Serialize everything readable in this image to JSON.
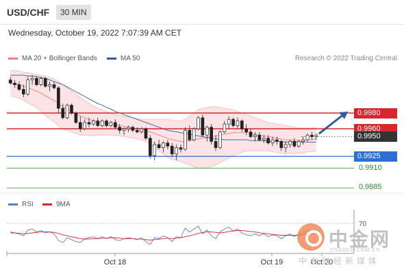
{
  "header": {
    "pair": "USD/CHF",
    "timeframe": "30 MIN"
  },
  "datetime": "Wednesday, October 19, 2022 7:07:39 AM CET",
  "legend": {
    "bollinger": {
      "label": "MA 20 + Bollinger Bands",
      "color": "#f08080"
    },
    "ma50": {
      "label": "MA 50",
      "color": "#2e5c9e"
    }
  },
  "credit": "Research © 2022 Trading Central",
  "rsi_legend": {
    "rsi": {
      "label": "RSI",
      "color": "#5b7bd5"
    },
    "ma9": {
      "label": "9MA",
      "color": "#d9262c"
    }
  },
  "watermark": {
    "cn": "中金网",
    "url": "CNGOLD.COM.CN",
    "sub": "中金财经新媒体"
  },
  "chart_data": {
    "type": "candlestick",
    "pair": "USD/CHF",
    "timeframe": "30 MIN",
    "x_tick_labels": [
      "Oct 18",
      "Oct 19",
      "Oct 20"
    ],
    "y_range": [
      0.988,
      1.004
    ],
    "levels": [
      {
        "value": 0.998,
        "label": "0.9980",
        "kind": "resistance",
        "color": "#d9262c"
      },
      {
        "value": 0.996,
        "label": "0.9960",
        "kind": "resistance",
        "color": "#d9262c"
      },
      {
        "value": 0.995,
        "label": "0.9950",
        "kind": "current",
        "color": "#333333"
      },
      {
        "value": 0.9925,
        "label": "0.9925",
        "kind": "pivot",
        "color": "#2e6fd6"
      },
      {
        "value": 0.991,
        "label": "0.9910",
        "kind": "support",
        "color": "#2e8b2e"
      },
      {
        "value": 0.9885,
        "label": "0.9885",
        "kind": "support",
        "color": "#2e8b2e"
      }
    ],
    "forecast": "up",
    "candles": [
      [
        1.0022,
        1.0026,
        1.0016,
        1.0018
      ],
      [
        1.0018,
        1.0022,
        1.0012,
        1.0016
      ],
      [
        1.0016,
        1.002,
        1.0008,
        1.001
      ],
      [
        1.001,
        1.0016,
        1.0,
        1.0004
      ],
      [
        1.0004,
        1.0026,
        1.0002,
        1.0022
      ],
      [
        1.0022,
        1.0028,
        1.0016,
        1.0024
      ],
      [
        1.0024,
        1.0027,
        1.0014,
        1.0016
      ],
      [
        1.0016,
        1.0026,
        1.0014,
        1.0024
      ],
      [
        1.0024,
        1.0026,
        1.0012,
        1.0014
      ],
      [
        1.0014,
        1.002,
        1.0008,
        1.0016
      ],
      [
        1.0016,
        1.002,
        1.001,
        1.0012
      ],
      [
        1.0012,
        1.0014,
        0.998,
        0.9986
      ],
      [
        0.9986,
        0.9992,
        0.9972,
        0.9974
      ],
      [
        0.9974,
        0.9992,
        0.9972,
        0.999
      ],
      [
        0.999,
        0.9992,
        0.9978,
        0.998
      ],
      [
        0.998,
        0.9982,
        0.9966,
        0.9968
      ],
      [
        0.9968,
        0.9976,
        0.9956,
        0.996
      ],
      [
        0.996,
        0.9972,
        0.9958,
        0.9968
      ],
      [
        0.9968,
        0.9974,
        0.9962,
        0.9966
      ],
      [
        0.9966,
        0.9972,
        0.9964,
        0.997
      ],
      [
        0.997,
        0.9974,
        0.9962,
        0.9964
      ],
      [
        0.9964,
        0.9972,
        0.9962,
        0.997
      ],
      [
        0.997,
        0.9972,
        0.9962,
        0.9964
      ],
      [
        0.9964,
        0.997,
        0.9962,
        0.9968
      ],
      [
        0.9968,
        0.9972,
        0.996,
        0.9962
      ],
      [
        0.9962,
        0.9966,
        0.9954,
        0.9958
      ],
      [
        0.9958,
        0.9962,
        0.9952,
        0.996
      ],
      [
        0.996,
        0.9964,
        0.9956,
        0.9962
      ],
      [
        0.9962,
        0.9964,
        0.9956,
        0.9958
      ],
      [
        0.9958,
        0.9962,
        0.9954,
        0.9956
      ],
      [
        0.9956,
        0.9962,
        0.9954,
        0.996
      ],
      [
        0.996,
        0.9962,
        0.9946,
        0.9948
      ],
      [
        0.9948,
        0.9952,
        0.9922,
        0.9926
      ],
      [
        0.9926,
        0.9944,
        0.992,
        0.994
      ],
      [
        0.994,
        0.9946,
        0.9934,
        0.9936
      ],
      [
        0.9936,
        0.9944,
        0.993,
        0.9942
      ],
      [
        0.9942,
        0.9946,
        0.9934,
        0.9938
      ],
      [
        0.9938,
        0.9942,
        0.9924,
        0.9928
      ],
      [
        0.9928,
        0.994,
        0.992,
        0.9936
      ],
      [
        0.9936,
        0.994,
        0.993,
        0.9934
      ],
      [
        0.9934,
        0.9962,
        0.9932,
        0.9958
      ],
      [
        0.9958,
        0.9964,
        0.9944,
        0.9946
      ],
      [
        0.9946,
        0.9962,
        0.9944,
        0.996
      ],
      [
        0.996,
        0.9976,
        0.9958,
        0.9974
      ],
      [
        0.9974,
        0.9978,
        0.995,
        0.9952
      ],
      [
        0.9952,
        0.9964,
        0.9944,
        0.9962
      ],
      [
        0.9962,
        0.9966,
        0.994,
        0.9944
      ],
      [
        0.9944,
        0.9952,
        0.9932,
        0.9936
      ],
      [
        0.9936,
        0.9958,
        0.9934,
        0.9956
      ],
      [
        0.9956,
        0.997,
        0.9954,
        0.9966
      ],
      [
        0.9966,
        0.9976,
        0.996,
        0.9972
      ],
      [
        0.9972,
        0.9974,
        0.9962,
        0.9964
      ],
      [
        0.9964,
        0.9974,
        0.996,
        0.997
      ],
      [
        0.997,
        0.9972,
        0.9956,
        0.996
      ],
      [
        0.996,
        0.9966,
        0.9952,
        0.9956
      ],
      [
        0.9956,
        0.996,
        0.9948,
        0.995
      ],
      [
        0.995,
        0.9956,
        0.9944,
        0.9952
      ],
      [
        0.9952,
        0.9956,
        0.9944,
        0.9946
      ],
      [
        0.9946,
        0.9952,
        0.9942,
        0.9948
      ],
      [
        0.9948,
        0.9952,
        0.994,
        0.9942
      ],
      [
        0.9942,
        0.995,
        0.9938,
        0.9946
      ],
      [
        0.9946,
        0.995,
        0.994,
        0.9944
      ],
      [
        0.9944,
        0.9946,
        0.9932,
        0.9936
      ],
      [
        0.9936,
        0.9944,
        0.993,
        0.994
      ],
      [
        0.994,
        0.9946,
        0.9936,
        0.9944
      ],
      [
        0.9944,
        0.9948,
        0.9936,
        0.9938
      ],
      [
        0.9938,
        0.9946,
        0.9936,
        0.9944
      ],
      [
        0.9944,
        0.995,
        0.994,
        0.9946
      ],
      [
        0.9946,
        0.9954,
        0.9944,
        0.9952
      ],
      [
        0.9952,
        0.9956,
        0.9946,
        0.995
      ],
      [
        0.995,
        0.9954,
        0.9946,
        0.9952
      ]
    ],
    "ma20": [
      1.0018,
      1.0017,
      1.0016,
      1.0014,
      1.0012,
      1.001,
      1.0008,
      1.0005,
      1.0002,
      0.9999,
      0.9996,
      0.9992,
      0.9988,
      0.9985,
      0.9982,
      0.9979,
      0.9976,
      0.9974,
      0.9972,
      0.997,
      0.9969,
      0.9968,
      0.9967,
      0.9966,
      0.9965,
      0.9964,
      0.9963,
      0.9962,
      0.9961,
      0.996,
      0.9959,
      0.9958,
      0.9956,
      0.9954,
      0.9952,
      0.995,
      0.9948,
      0.9946,
      0.9945,
      0.9944,
      0.9944,
      0.9945,
      0.9946,
      0.9947,
      0.9948,
      0.9949,
      0.995,
      0.9951,
      0.9952,
      0.9953,
      0.9954,
      0.9955,
      0.9955,
      0.9955,
      0.9955,
      0.9954,
      0.9953,
      0.9952,
      0.9951,
      0.995,
      0.9949,
      0.9948,
      0.9947,
      0.9946,
      0.9946,
      0.9945,
      0.9945,
      0.9945,
      0.9946,
      0.9946,
      0.9947
    ],
    "bb_upper": [
      1.0034,
      1.0034,
      1.0033,
      1.0032,
      1.0031,
      1.003,
      1.0029,
      1.0028,
      1.0027,
      1.0025,
      1.0023,
      1.002,
      1.0016,
      1.0012,
      1.0008,
      1.0004,
      1.0,
      0.9996,
      0.9992,
      0.9989,
      0.9986,
      0.9984,
      0.9982,
      0.998,
      0.9978,
      0.9977,
      0.9976,
      0.9975,
      0.9974,
      0.9973,
      0.9972,
      0.9972,
      0.9972,
      0.9972,
      0.9972,
      0.9972,
      0.9972,
      0.9971,
      0.997,
      0.997,
      0.9972,
      0.9976,
      0.998,
      0.9984,
      0.9986,
      0.9987,
      0.9988,
      0.9988,
      0.9987,
      0.9986,
      0.9985,
      0.9984,
      0.9982,
      0.998,
      0.9978,
      0.9976,
      0.9974,
      0.9972,
      0.997,
      0.9968,
      0.9967,
      0.9966,
      0.9965,
      0.9964,
      0.9963,
      0.9962,
      0.9961,
      0.9961,
      0.9961,
      0.9961,
      0.9962
    ],
    "bb_lower": [
      1.0002,
      1.0,
      0.9999,
      0.9996,
      0.9993,
      0.999,
      0.9987,
      0.9982,
      0.9977,
      0.9973,
      0.9969,
      0.9964,
      0.996,
      0.9958,
      0.9956,
      0.9954,
      0.9952,
      0.9952,
      0.9952,
      0.9951,
      0.9952,
      0.9952,
      0.9952,
      0.9952,
      0.9952,
      0.9951,
      0.995,
      0.9949,
      0.9948,
      0.9947,
      0.9946,
      0.9944,
      0.994,
      0.9936,
      0.9932,
      0.9928,
      0.9924,
      0.9921,
      0.992,
      0.9918,
      0.9916,
      0.9914,
      0.9912,
      0.991,
      0.991,
      0.9911,
      0.9912,
      0.9914,
      0.9917,
      0.992,
      0.9923,
      0.9926,
      0.9928,
      0.993,
      0.9932,
      0.9932,
      0.9932,
      0.9932,
      0.9932,
      0.9932,
      0.9931,
      0.993,
      0.9929,
      0.9928,
      0.9929,
      0.9928,
      0.9929,
      0.9929,
      0.9931,
      0.9931,
      0.9932
    ],
    "ma50": [
      1.0028,
      1.0028,
      1.0028,
      1.0028,
      1.0027,
      1.0027,
      1.0026,
      1.0025,
      1.0024,
      1.0022,
      1.002,
      1.0018,
      1.0016,
      1.0013,
      1.001,
      1.0007,
      1.0004,
      1.0001,
      0.9998,
      0.9995,
      0.9992,
      0.999,
      0.9987,
      0.9985,
      0.9982,
      0.998,
      0.9978,
      0.9976,
      0.9974,
      0.9972,
      0.997,
      0.9968,
      0.9966,
      0.9964,
      0.9962,
      0.996,
      0.9958,
      0.9957,
      0.9956,
      0.9955,
      0.9954,
      0.9953,
      0.9952,
      0.9951,
      0.995,
      0.9949,
      0.9948,
      0.9947,
      0.9947,
      0.9946,
      0.9946,
      0.9946,
      0.9946,
      0.9946,
      0.9946,
      0.9945,
      0.9945,
      0.9945,
      0.9945,
      0.9944,
      0.9944,
      0.9944,
      0.9944,
      0.9943,
      0.9943,
      0.9943,
      0.9943,
      0.9943,
      0.9943,
      0.9943,
      0.9943
    ],
    "rsi_panel": {
      "level_label": "70",
      "level_value": 70,
      "y_range": [
        10,
        90
      ],
      "rsi": [
        52,
        50,
        48,
        44,
        56,
        58,
        52,
        55,
        50,
        52,
        48,
        34,
        30,
        40,
        36,
        32,
        30,
        38,
        40,
        42,
        38,
        42,
        38,
        42,
        36,
        34,
        38,
        40,
        38,
        36,
        40,
        32,
        26,
        40,
        38,
        44,
        40,
        32,
        42,
        40,
        60,
        52,
        58,
        64,
        48,
        56,
        44,
        38,
        52,
        58,
        62,
        54,
        58,
        50,
        46,
        44,
        48,
        44,
        48,
        42,
        46,
        44,
        38,
        44,
        48,
        42,
        48,
        50,
        54,
        52,
        54
      ],
      "ma9": [
        50,
        50,
        49,
        48,
        49,
        50,
        51,
        52,
        52,
        52,
        51,
        49,
        46,
        44,
        42,
        40,
        38,
        37,
        37,
        38,
        38,
        39,
        39,
        40,
        40,
        39,
        38,
        38,
        38,
        37,
        37,
        36,
        35,
        36,
        37,
        38,
        39,
        38,
        39,
        40,
        42,
        44,
        46,
        49,
        51,
        52,
        52,
        51,
        50,
        51,
        53,
        54,
        55,
        55,
        54,
        53,
        52,
        50,
        49,
        48,
        47,
        46,
        45,
        45,
        45,
        45,
        45,
        46,
        47,
        48,
        49
      ]
    }
  }
}
